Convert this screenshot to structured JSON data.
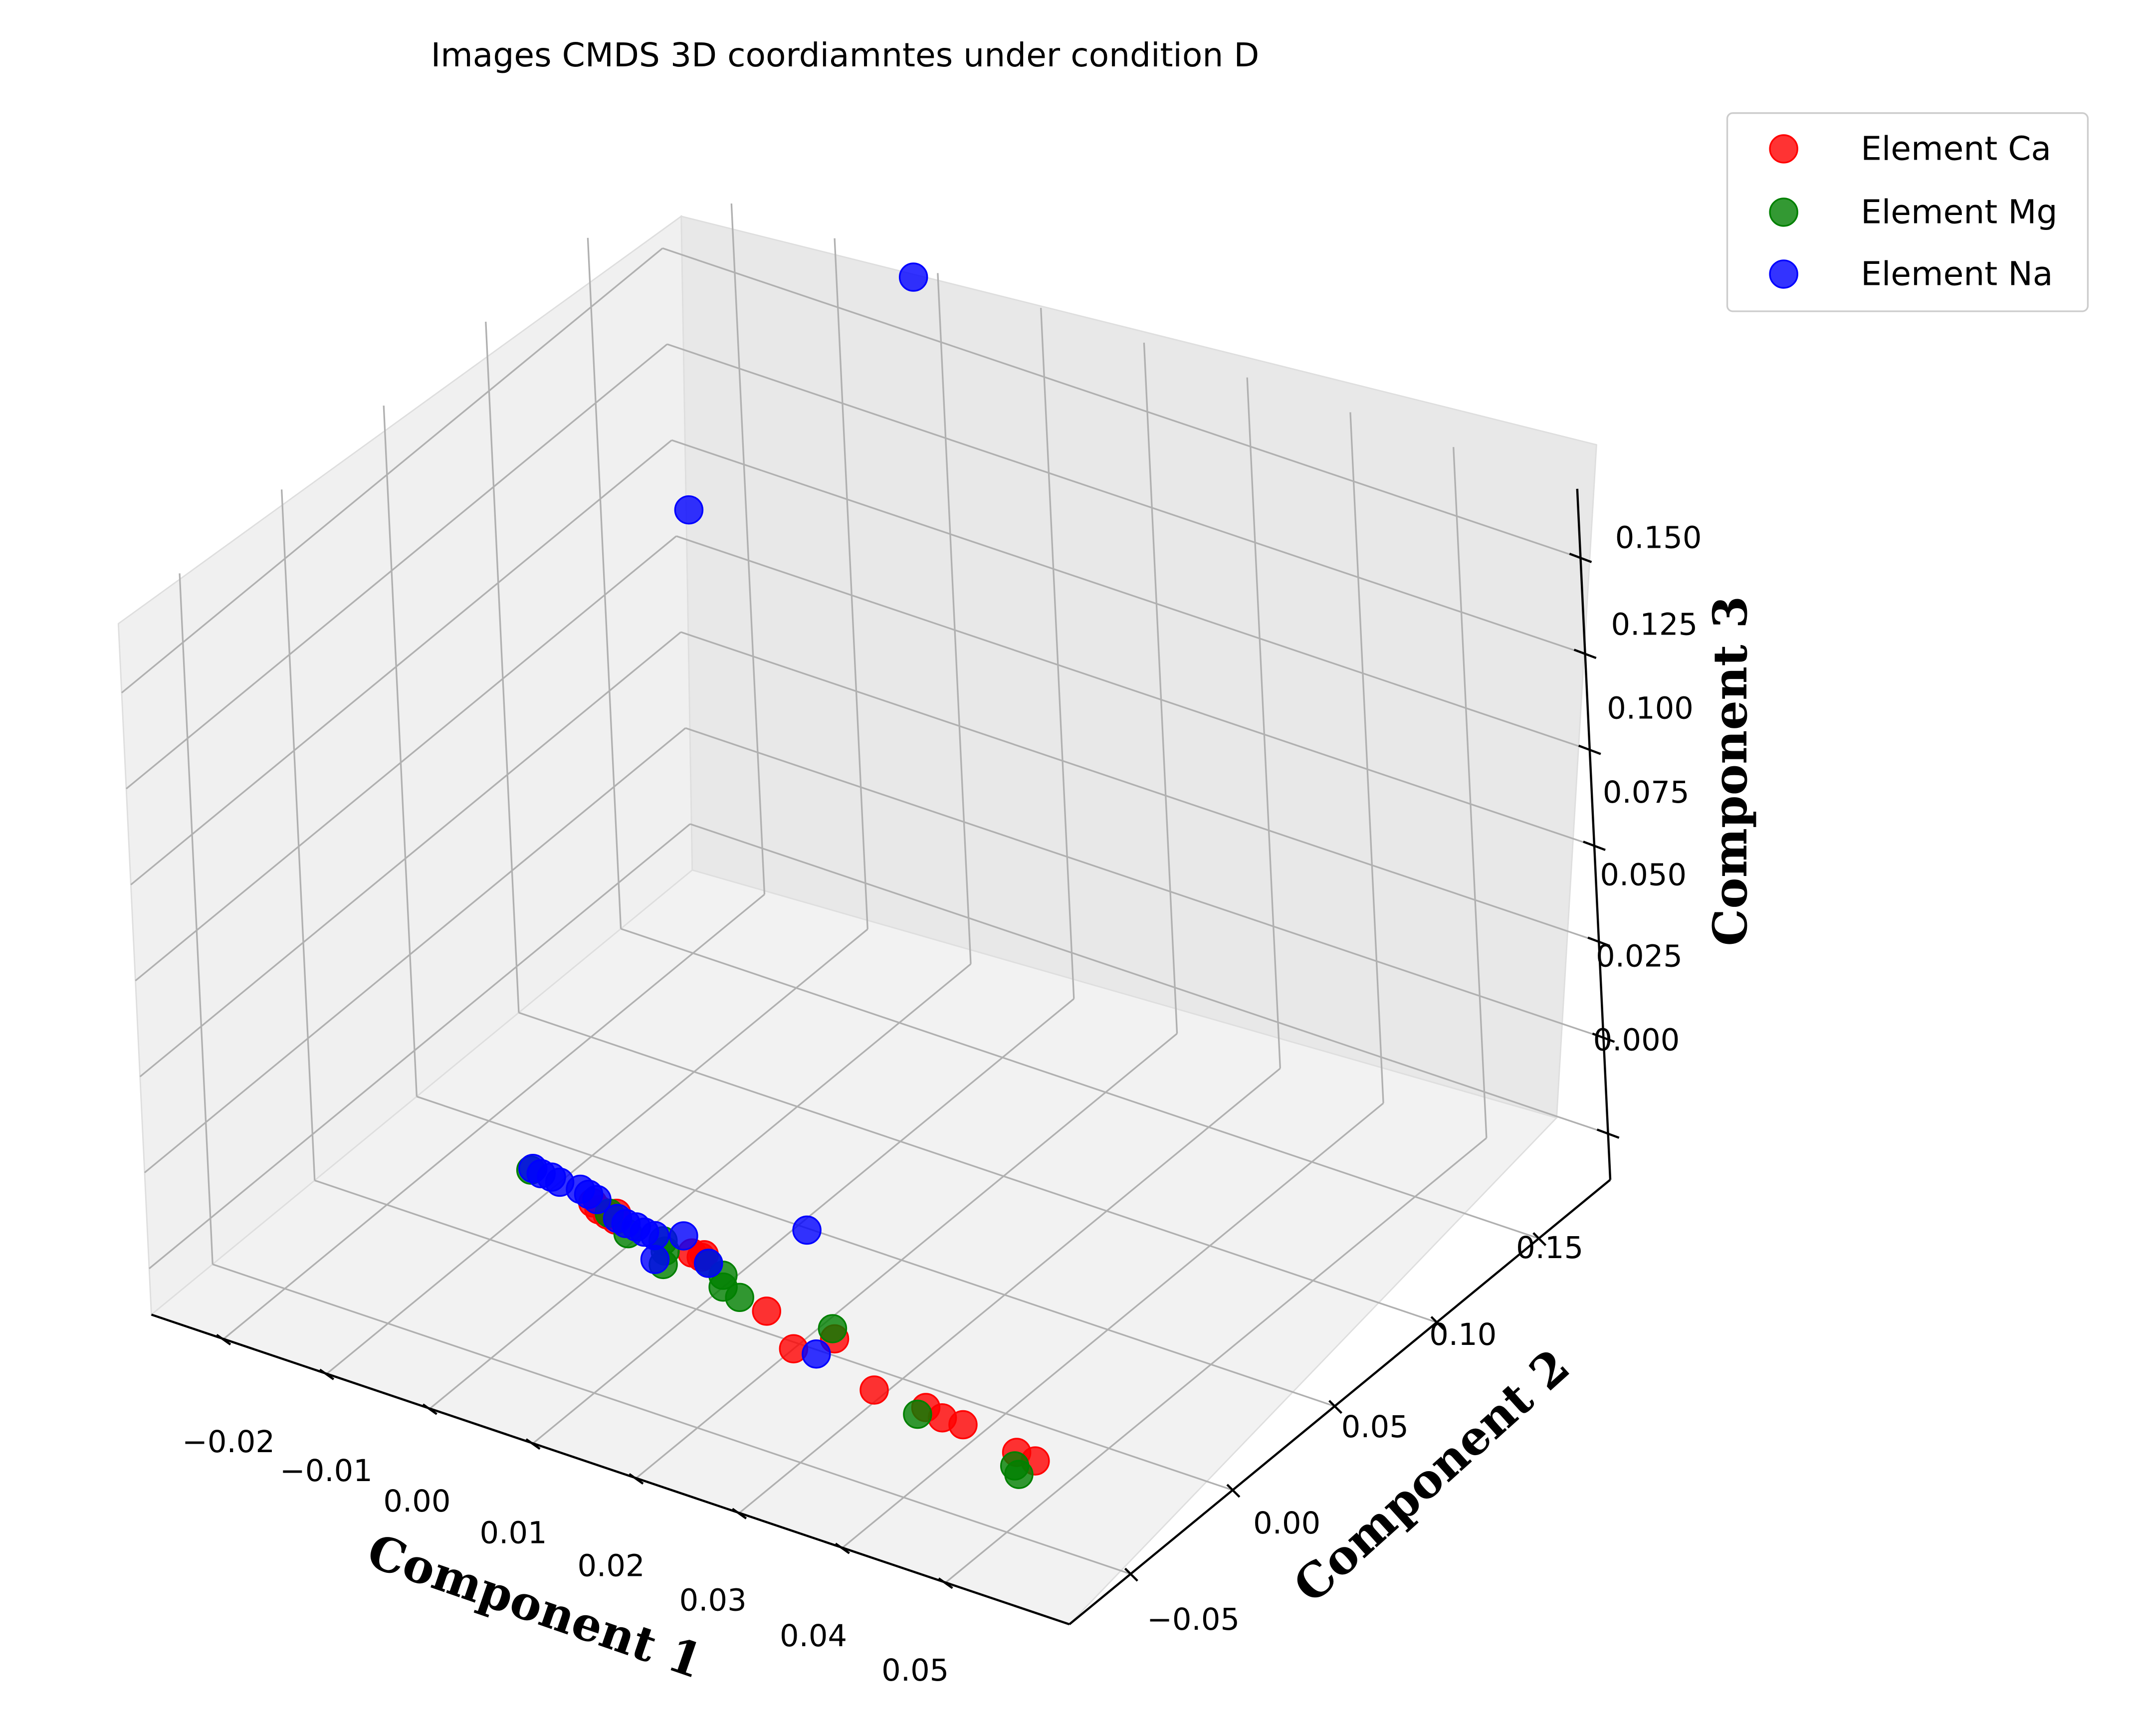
{
  "chart_data": {
    "type": "scatter",
    "projection": "3d",
    "title": "Images CMDS 3D coordiamntes under condition D",
    "xlabel": "Component 1",
    "ylabel": "Component 2",
    "zlabel": "Component 3",
    "x_ticks": [
      "−0.02",
      "−0.01",
      "0.00",
      "0.01",
      "0.02",
      "0.03",
      "0.04",
      "0.05"
    ],
    "y_ticks": [
      "−0.05",
      "0.00",
      "0.05",
      "0.10",
      "0.15"
    ],
    "z_ticks": [
      "0.000",
      "0.025",
      "0.050",
      "0.075",
      "0.100",
      "0.125",
      "0.150"
    ],
    "xlim": [
      -0.027,
      0.062
    ],
    "ylim": [
      -0.08,
      0.185
    ],
    "zlim": [
      -0.012,
      0.168
    ],
    "grid": true,
    "legend_position": "outside top-right",
    "series": [
      {
        "name": "Element Ca",
        "color": "#ff0000",
        "points": [
          [
            -0.002,
            0.011,
            0.0
          ],
          [
            -0.001,
            0.009,
            0.0
          ],
          [
            0.0,
            0.008,
            0.0
          ],
          [
            0.0005,
            0.01,
            0.0
          ],
          [
            0.001,
            0.007,
            0.0
          ],
          [
            0.009,
            0.004,
            0.0
          ],
          [
            0.01,
            0.005,
            0.0
          ],
          [
            0.01,
            0.0035,
            0.0
          ],
          [
            0.019,
            -0.01,
            0.0
          ],
          [
            0.026,
            -0.012,
            0.0
          ],
          [
            0.024,
            -0.022,
            0.0
          ],
          [
            0.033,
            -0.028,
            0.0
          ],
          [
            0.038,
            -0.028,
            0.0
          ],
          [
            0.04,
            -0.03,
            0.0
          ],
          [
            0.042,
            -0.03,
            0.0
          ],
          [
            0.048,
            -0.034,
            0.0
          ],
          [
            0.05,
            -0.035,
            0.0
          ]
        ]
      },
      {
        "name": "Element Mg",
        "color": "#008000",
        "points": [
          [
            -0.009,
            0.016,
            0.0
          ],
          [
            0.0,
            0.009,
            0.0
          ],
          [
            0.003,
            0.003,
            0.0
          ],
          [
            0.006,
            0.005,
            0.0
          ],
          [
            0.007,
            0.001,
            0.0
          ],
          [
            0.011,
            0.002,
            0.0
          ],
          [
            0.008,
            -0.005,
            0.0
          ],
          [
            0.013,
            -0.001,
            0.0
          ],
          [
            0.014,
            -0.006,
            0.0
          ],
          [
            0.016,
            -0.008,
            0.0
          ],
          [
            0.025,
            -0.008,
            0.0
          ],
          [
            0.038,
            -0.032,
            0.0
          ],
          [
            0.049,
            -0.04,
            0.0
          ],
          [
            0.05,
            -0.043,
            0.0
          ]
        ]
      },
      {
        "name": "Element Na",
        "color": "#0000ff",
        "points": [
          [
            -0.009,
            0.017,
            0.0
          ],
          [
            -0.008,
            0.016,
            0.0
          ],
          [
            -0.007,
            0.016,
            0.0
          ],
          [
            -0.006,
            0.015,
            0.0
          ],
          [
            -0.004,
            0.015,
            0.0
          ],
          [
            -0.003,
            0.014,
            0.0
          ],
          [
            -0.002,
            0.013,
            0.0
          ],
          [
            0.001,
            0.008,
            0.0
          ],
          [
            0.002,
            0.007,
            0.0
          ],
          [
            0.003,
            0.007,
            0.0
          ],
          [
            0.004,
            0.006,
            0.0
          ],
          [
            0.005,
            0.006,
            0.0
          ],
          [
            0.007,
            0.01,
            0.0
          ],
          [
            0.011,
            0.002,
            0.0
          ],
          [
            0.007,
            -0.004,
            0.0
          ],
          [
            0.015,
            0.03,
            0.0
          ],
          [
            0.026,
            -0.021,
            0.0
          ],
          [
            -0.02,
            0.158,
            0.1
          ],
          [
            -0.002,
            0.183,
            0.166
          ]
        ]
      }
    ]
  }
}
